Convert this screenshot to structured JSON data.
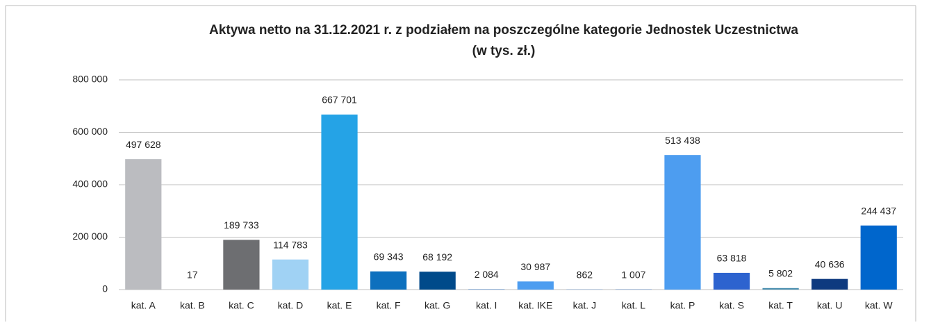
{
  "chart_data": {
    "type": "bar",
    "title": "Aktywa netto na 31.12.2021 r. z podziałem na poszczególne kategorie Jednostek Uczestnictwa",
    "subtitle": "(w tys. zł.)",
    "categories": [
      "kat. A",
      "kat. B",
      "kat. C",
      "kat. D",
      "kat. E",
      "kat. F",
      "kat. G",
      "kat. I",
      "kat. IKE",
      "kat. J",
      "kat. L",
      "kat. P",
      "kat. S",
      "kat. T",
      "kat. U",
      "kat. W"
    ],
    "values": [
      497628,
      17,
      189733,
      114783,
      667701,
      69343,
      68192,
      2084,
      30987,
      862,
      1007,
      513438,
      63818,
      5802,
      40636,
      244437
    ],
    "value_labels": [
      "497 628",
      "17",
      "189 733",
      "114 783",
      "667 701",
      "69 343",
      "68 192",
      "2 084",
      "30 987",
      "862",
      "1 007",
      "513 438",
      "63 818",
      "5 802",
      "40 636",
      "244 437"
    ],
    "colors": [
      "#bbbcc0",
      "#9e9e9e",
      "#6d6e71",
      "#a0d2f4",
      "#25a3e6",
      "#0d70be",
      "#004a8a",
      "#7aa6d6",
      "#4d9df0",
      "#5b8fd1",
      "#3d7bc4",
      "#4d9df0",
      "#2d63cf",
      "#4a8fb0",
      "#0e3a7f",
      "#0066cc"
    ],
    "ylim": [
      0,
      800000
    ],
    "yticks": [
      0,
      {
        "value": 200000,
        "label": "200 000"
      },
      {
        "value": 400000,
        "label": "400 000"
      },
      {
        "value": 600000,
        "label": "600 000"
      },
      {
        "value": 800000,
        "label": "800 000"
      }
    ],
    "grid": true
  }
}
